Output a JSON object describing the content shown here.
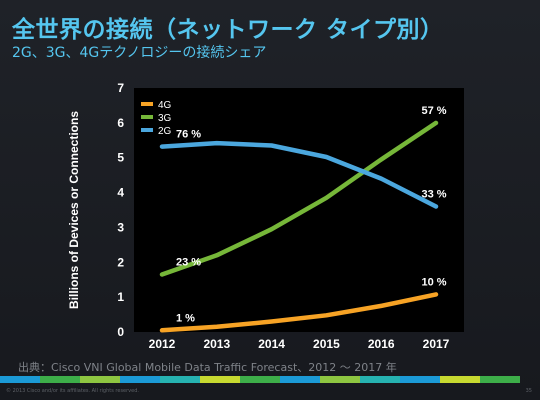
{
  "page": {
    "title": "全世界の接続（ネットワーク タイプ別）",
    "subtitle": "2G、3G、4Gテクノロジーの接続シェア",
    "source": "出典：Cisco VNI Global Mobile Data Traffic Forecast、2012 ～ 2017 年",
    "copyright": "© 2013 Cisco and/or its affiliates. All rights reserved.",
    "page_number": "35"
  },
  "colors": {
    "title": "#55c6ef",
    "plot_bg": "#000000",
    "stripe": [
      "#1b9ad6",
      "#3dae49",
      "#8ec641",
      "#1b9ad6",
      "#26b2b0",
      "#c7d930",
      "#3dae49",
      "#1b9ad6",
      "#8ec641",
      "#26b2b0",
      "#1b9ad6",
      "#c7d930",
      "#3dae49"
    ]
  },
  "chart_data": {
    "type": "line",
    "title": "",
    "xlabel": "",
    "ylabel": "Billions of Devices or Connections",
    "x": [
      "2012",
      "2013",
      "2014",
      "2015",
      "2016",
      "2017"
    ],
    "ylim": [
      0,
      7
    ],
    "yticks": [
      0,
      1,
      2,
      3,
      4,
      5,
      6,
      7
    ],
    "grid": false,
    "legend": "top-left",
    "series": [
      {
        "name": "4G",
        "color": "#f7a325",
        "values": [
          0.05,
          0.15,
          0.3,
          0.48,
          0.75,
          1.08
        ]
      },
      {
        "name": "3G",
        "color": "#76b739",
        "values": [
          1.65,
          2.2,
          2.95,
          3.85,
          4.95,
          6.0
        ]
      },
      {
        "name": "2G",
        "color": "#4ba7de",
        "values": [
          5.32,
          5.42,
          5.35,
          5.02,
          4.4,
          3.6
        ]
      }
    ],
    "annotations": [
      {
        "series": 2,
        "index": 0,
        "text": "76 %"
      },
      {
        "series": 1,
        "index": 0,
        "text": "23 %"
      },
      {
        "series": 0,
        "index": 0,
        "text": "1 %"
      },
      {
        "series": 1,
        "index": 5,
        "text": "57 %"
      },
      {
        "series": 2,
        "index": 5,
        "text": "33 %"
      },
      {
        "series": 0,
        "index": 5,
        "text": "10 %"
      }
    ]
  }
}
